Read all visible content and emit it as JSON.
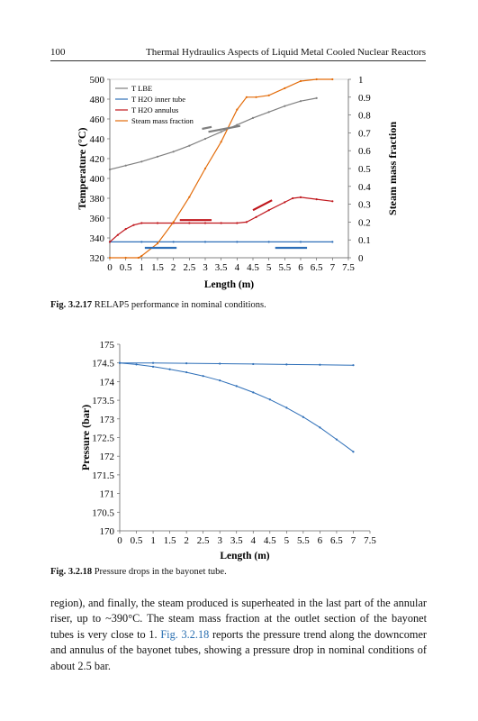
{
  "header": {
    "page_number": "100",
    "running_title": "Thermal Hydraulics Aspects of Liquid Metal Cooled Nuclear Reactors"
  },
  "figure1": {
    "label": "Fig. 3.2.17",
    "caption": "RELAP5 performance in nominal conditions."
  },
  "figure2": {
    "label": "Fig. 3.2.18",
    "caption": "Pressure drops in the bayonet tube."
  },
  "paragraph": {
    "part1": "region), and finally, the steam produced is superheated in the last part of the annular riser, up to ~390°C. The steam mass fraction at the outlet section of the bayonet tubes is very close to 1. ",
    "link": "Fig. 3.2.18",
    "part2": " reports the pressure trend along the downcomer and annulus of the bayonet tubes, showing a pressure drop in nominal conditions of about 2.5 bar."
  },
  "chart_data": [
    {
      "type": "line",
      "xlabel": "Length (m)",
      "ylabel": "Temperature (°C)",
      "y2label": "Steam mass fraction",
      "xlim": [
        0,
        7.5
      ],
      "ylim": [
        320,
        500
      ],
      "y2lim": [
        0,
        1
      ],
      "xticks": [
        "0",
        "0.5",
        "1",
        "1.5",
        "2",
        "2.5",
        "3",
        "3.5",
        "4",
        "4.5",
        "5",
        "5.5",
        "6",
        "6.5",
        "7",
        "7.5"
      ],
      "yticks": [
        "320",
        "340",
        "360",
        "380",
        "400",
        "420",
        "440",
        "460",
        "480",
        "500"
      ],
      "y2ticks": [
        "0",
        "0.1",
        "0.2",
        "0.3",
        "0.4",
        "0.5",
        "0.6",
        "0.7",
        "0.8",
        "0.9",
        "1"
      ],
      "legend_position": "top-left",
      "series": [
        {
          "name": "T LBE",
          "color": "#7f7f7f",
          "axis": "left",
          "x": [
            0,
            0.5,
            1,
            1.5,
            2,
            2.5,
            3,
            3.5,
            4,
            4.5,
            5,
            5.5,
            6,
            6.5
          ],
          "y": [
            409,
            413,
            417,
            422,
            427,
            433,
            440,
            447,
            454,
            461,
            467,
            473,
            478,
            481
          ]
        },
        {
          "name": "T H2O inner tube",
          "color": "#2e6fb8",
          "axis": "left",
          "x": [
            0,
            1,
            2,
            3,
            4,
            5,
            6,
            7
          ],
          "y": [
            336,
            336,
            336,
            336,
            336,
            336,
            336,
            336
          ]
        },
        {
          "name": "T H2O annulus",
          "color": "#c0161c",
          "axis": "left",
          "x": [
            0,
            0.25,
            0.5,
            0.75,
            1,
            1.5,
            2,
            2.5,
            3,
            3.5,
            4,
            4.3,
            4.6,
            5,
            5.5,
            5.75,
            6,
            6.5,
            7
          ],
          "y": [
            336,
            343,
            349,
            353,
            355,
            355,
            355,
            355,
            355,
            355,
            355,
            356,
            361,
            368,
            376,
            380,
            381,
            379,
            377
          ]
        },
        {
          "name": "Steam mass fraction",
          "color": "#e36c0a",
          "axis": "right",
          "x": [
            0,
            0.5,
            0.9,
            1,
            1.5,
            2,
            2.5,
            3,
            3.5,
            4,
            4.3,
            4.6,
            5,
            5.5,
            6,
            6.5,
            7
          ],
          "y": [
            0,
            0,
            0,
            0.01,
            0.08,
            0.2,
            0.34,
            0.5,
            0.65,
            0.83,
            0.9,
            0.9,
            0.91,
            0.95,
            0.99,
            1,
            1
          ]
        }
      ]
    },
    {
      "type": "line",
      "xlabel": "Length (m)",
      "ylabel": "Pressure (bar)",
      "xlim": [
        0,
        7.5
      ],
      "ylim": [
        170,
        175
      ],
      "xticks": [
        "0",
        "0.5",
        "1",
        "1.5",
        "2",
        "2.5",
        "3",
        "3.5",
        "4",
        "4.5",
        "5",
        "5.5",
        "6",
        "6.5",
        "7",
        "7.5"
      ],
      "yticks": [
        "170",
        "170.5",
        "171",
        "171.5",
        "172",
        "172.5",
        "173",
        "173.5",
        "174",
        "174.5",
        "175"
      ],
      "series": [
        {
          "color": "#2e6fb8",
          "x": [
            0,
            1,
            2,
            3,
            4,
            5,
            6,
            7
          ],
          "y": [
            174.5,
            174.5,
            174.49,
            174.48,
            174.47,
            174.46,
            174.45,
            174.44
          ]
        },
        {
          "color": "#2e6fb8",
          "x": [
            0,
            0.5,
            1,
            1.5,
            2,
            2.5,
            3,
            3.5,
            4,
            4.5,
            5,
            5.5,
            6,
            6.5,
            7
          ],
          "y": [
            174.5,
            174.46,
            174.4,
            174.33,
            174.25,
            174.15,
            174.03,
            173.88,
            173.71,
            173.52,
            173.3,
            173.05,
            172.77,
            172.45,
            172.12
          ]
        }
      ]
    }
  ]
}
